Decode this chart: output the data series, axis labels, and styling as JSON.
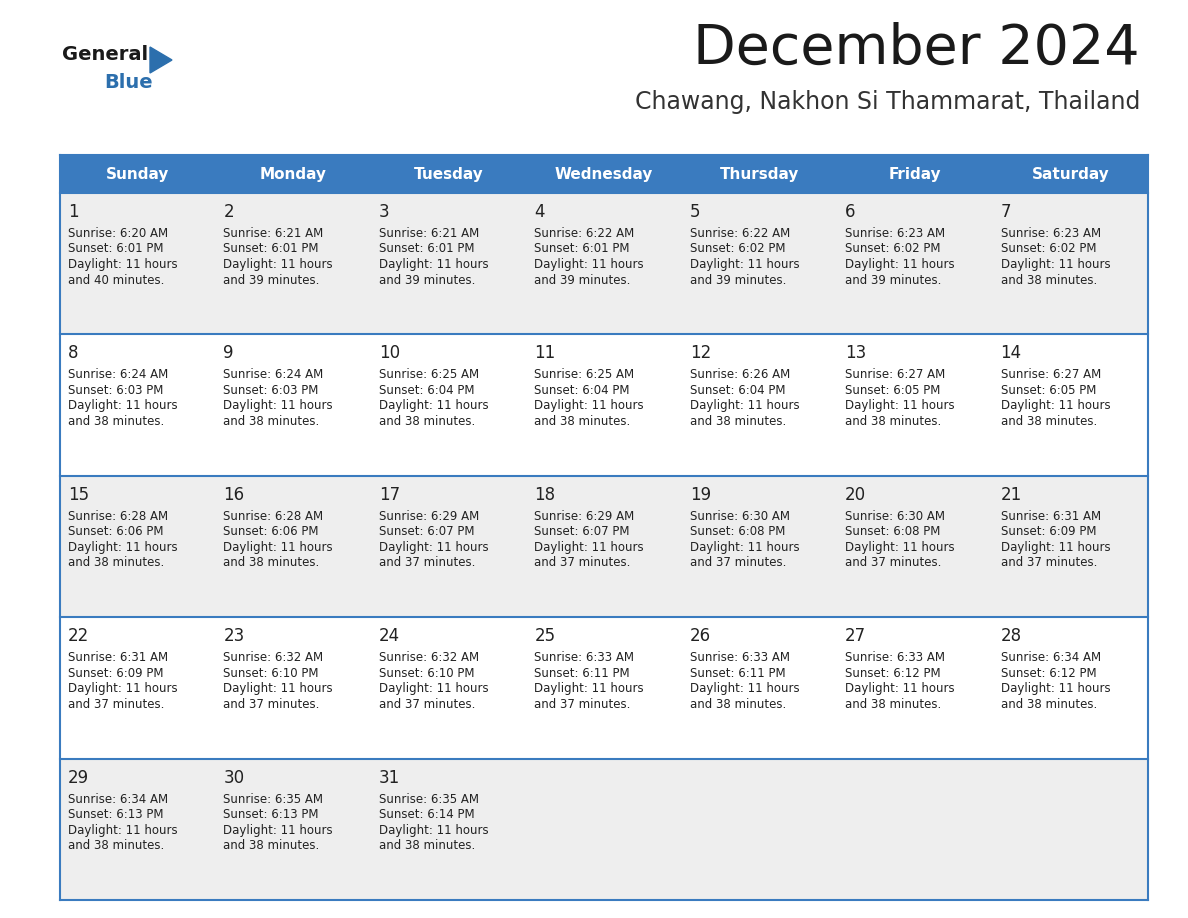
{
  "title": "December 2024",
  "subtitle": "Chawang, Nakhon Si Thammarat, Thailand",
  "header_bg_color": "#3a7bbf",
  "header_text_color": "#ffffff",
  "cell_bg_row0": "#eeeeee",
  "cell_bg_row1": "#ffffff",
  "border_color": "#3a7bbf",
  "text_color": "#222222",
  "days_of_week": [
    "Sunday",
    "Monday",
    "Tuesday",
    "Wednesday",
    "Thursday",
    "Friday",
    "Saturday"
  ],
  "logo_general_color": "#1a1a1a",
  "logo_blue_color": "#2c6fad",
  "logo_triangle_color": "#2c6fad",
  "title_color": "#1a1a1a",
  "subtitle_color": "#333333",
  "weeks": [
    [
      {
        "day": 1,
        "sunrise": "6:20 AM",
        "sunset": "6:01 PM",
        "daylight_hours": 11,
        "daylight_minutes": 40
      },
      {
        "day": 2,
        "sunrise": "6:21 AM",
        "sunset": "6:01 PM",
        "daylight_hours": 11,
        "daylight_minutes": 39
      },
      {
        "day": 3,
        "sunrise": "6:21 AM",
        "sunset": "6:01 PM",
        "daylight_hours": 11,
        "daylight_minutes": 39
      },
      {
        "day": 4,
        "sunrise": "6:22 AM",
        "sunset": "6:01 PM",
        "daylight_hours": 11,
        "daylight_minutes": 39
      },
      {
        "day": 5,
        "sunrise": "6:22 AM",
        "sunset": "6:02 PM",
        "daylight_hours": 11,
        "daylight_minutes": 39
      },
      {
        "day": 6,
        "sunrise": "6:23 AM",
        "sunset": "6:02 PM",
        "daylight_hours": 11,
        "daylight_minutes": 39
      },
      {
        "day": 7,
        "sunrise": "6:23 AM",
        "sunset": "6:02 PM",
        "daylight_hours": 11,
        "daylight_minutes": 38
      }
    ],
    [
      {
        "day": 8,
        "sunrise": "6:24 AM",
        "sunset": "6:03 PM",
        "daylight_hours": 11,
        "daylight_minutes": 38
      },
      {
        "day": 9,
        "sunrise": "6:24 AM",
        "sunset": "6:03 PM",
        "daylight_hours": 11,
        "daylight_minutes": 38
      },
      {
        "day": 10,
        "sunrise": "6:25 AM",
        "sunset": "6:04 PM",
        "daylight_hours": 11,
        "daylight_minutes": 38
      },
      {
        "day": 11,
        "sunrise": "6:25 AM",
        "sunset": "6:04 PM",
        "daylight_hours": 11,
        "daylight_minutes": 38
      },
      {
        "day": 12,
        "sunrise": "6:26 AM",
        "sunset": "6:04 PM",
        "daylight_hours": 11,
        "daylight_minutes": 38
      },
      {
        "day": 13,
        "sunrise": "6:27 AM",
        "sunset": "6:05 PM",
        "daylight_hours": 11,
        "daylight_minutes": 38
      },
      {
        "day": 14,
        "sunrise": "6:27 AM",
        "sunset": "6:05 PM",
        "daylight_hours": 11,
        "daylight_minutes": 38
      }
    ],
    [
      {
        "day": 15,
        "sunrise": "6:28 AM",
        "sunset": "6:06 PM",
        "daylight_hours": 11,
        "daylight_minutes": 38
      },
      {
        "day": 16,
        "sunrise": "6:28 AM",
        "sunset": "6:06 PM",
        "daylight_hours": 11,
        "daylight_minutes": 38
      },
      {
        "day": 17,
        "sunrise": "6:29 AM",
        "sunset": "6:07 PM",
        "daylight_hours": 11,
        "daylight_minutes": 37
      },
      {
        "day": 18,
        "sunrise": "6:29 AM",
        "sunset": "6:07 PM",
        "daylight_hours": 11,
        "daylight_minutes": 37
      },
      {
        "day": 19,
        "sunrise": "6:30 AM",
        "sunset": "6:08 PM",
        "daylight_hours": 11,
        "daylight_minutes": 37
      },
      {
        "day": 20,
        "sunrise": "6:30 AM",
        "sunset": "6:08 PM",
        "daylight_hours": 11,
        "daylight_minutes": 37
      },
      {
        "day": 21,
        "sunrise": "6:31 AM",
        "sunset": "6:09 PM",
        "daylight_hours": 11,
        "daylight_minutes": 37
      }
    ],
    [
      {
        "day": 22,
        "sunrise": "6:31 AM",
        "sunset": "6:09 PM",
        "daylight_hours": 11,
        "daylight_minutes": 37
      },
      {
        "day": 23,
        "sunrise": "6:32 AM",
        "sunset": "6:10 PM",
        "daylight_hours": 11,
        "daylight_minutes": 37
      },
      {
        "day": 24,
        "sunrise": "6:32 AM",
        "sunset": "6:10 PM",
        "daylight_hours": 11,
        "daylight_minutes": 37
      },
      {
        "day": 25,
        "sunrise": "6:33 AM",
        "sunset": "6:11 PM",
        "daylight_hours": 11,
        "daylight_minutes": 37
      },
      {
        "day": 26,
        "sunrise": "6:33 AM",
        "sunset": "6:11 PM",
        "daylight_hours": 11,
        "daylight_minutes": 38
      },
      {
        "day": 27,
        "sunrise": "6:33 AM",
        "sunset": "6:12 PM",
        "daylight_hours": 11,
        "daylight_minutes": 38
      },
      {
        "day": 28,
        "sunrise": "6:34 AM",
        "sunset": "6:12 PM",
        "daylight_hours": 11,
        "daylight_minutes": 38
      }
    ],
    [
      {
        "day": 29,
        "sunrise": "6:34 AM",
        "sunset": "6:13 PM",
        "daylight_hours": 11,
        "daylight_minutes": 38
      },
      {
        "day": 30,
        "sunrise": "6:35 AM",
        "sunset": "6:13 PM",
        "daylight_hours": 11,
        "daylight_minutes": 38
      },
      {
        "day": 31,
        "sunrise": "6:35 AM",
        "sunset": "6:14 PM",
        "daylight_hours": 11,
        "daylight_minutes": 38
      },
      null,
      null,
      null,
      null
    ]
  ]
}
